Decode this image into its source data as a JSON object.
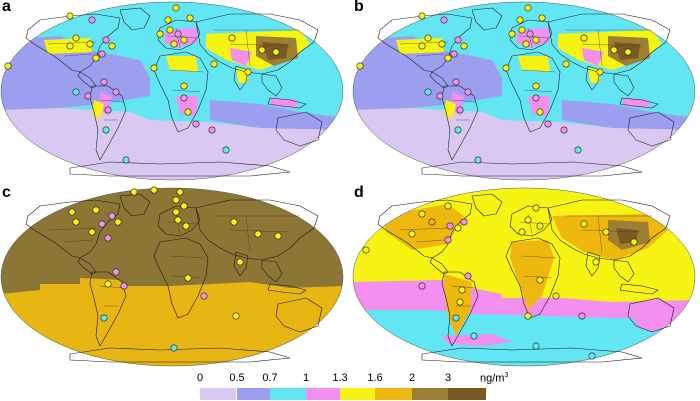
{
  "panels": [
    {
      "letter": "a",
      "scheme": "model_a"
    },
    {
      "letter": "b",
      "scheme": "model_b"
    },
    {
      "letter": "c",
      "scheme": "uniform"
    },
    {
      "letter": "d",
      "scheme": "bands"
    }
  ],
  "colorbar": {
    "ticks": [
      "0",
      "0.5",
      "0.7",
      "1",
      "1.3",
      "1.6",
      "2",
      "3"
    ],
    "unit_base": "ng/m",
    "unit_exp": "3",
    "colors": [
      "#d9c8f2",
      "#9c9ef0",
      "#62e6f3",
      "#f28fef",
      "#f7f414",
      "#efb80f",
      "#9c7f33",
      "#7a5a22"
    ]
  },
  "colors": {
    "ocean_south": "#d9c8f2",
    "ocean_mid": "#9c9ef0",
    "ocean_north": "#62e6f3",
    "hot": "#f28fef",
    "yellow": "#f7f414",
    "orange": "#efb80f",
    "brown": "#9c7f33",
    "darkbrown": "#7a5a22",
    "c_north": "#8c7636",
    "c_south": "#e8b612"
  }
}
